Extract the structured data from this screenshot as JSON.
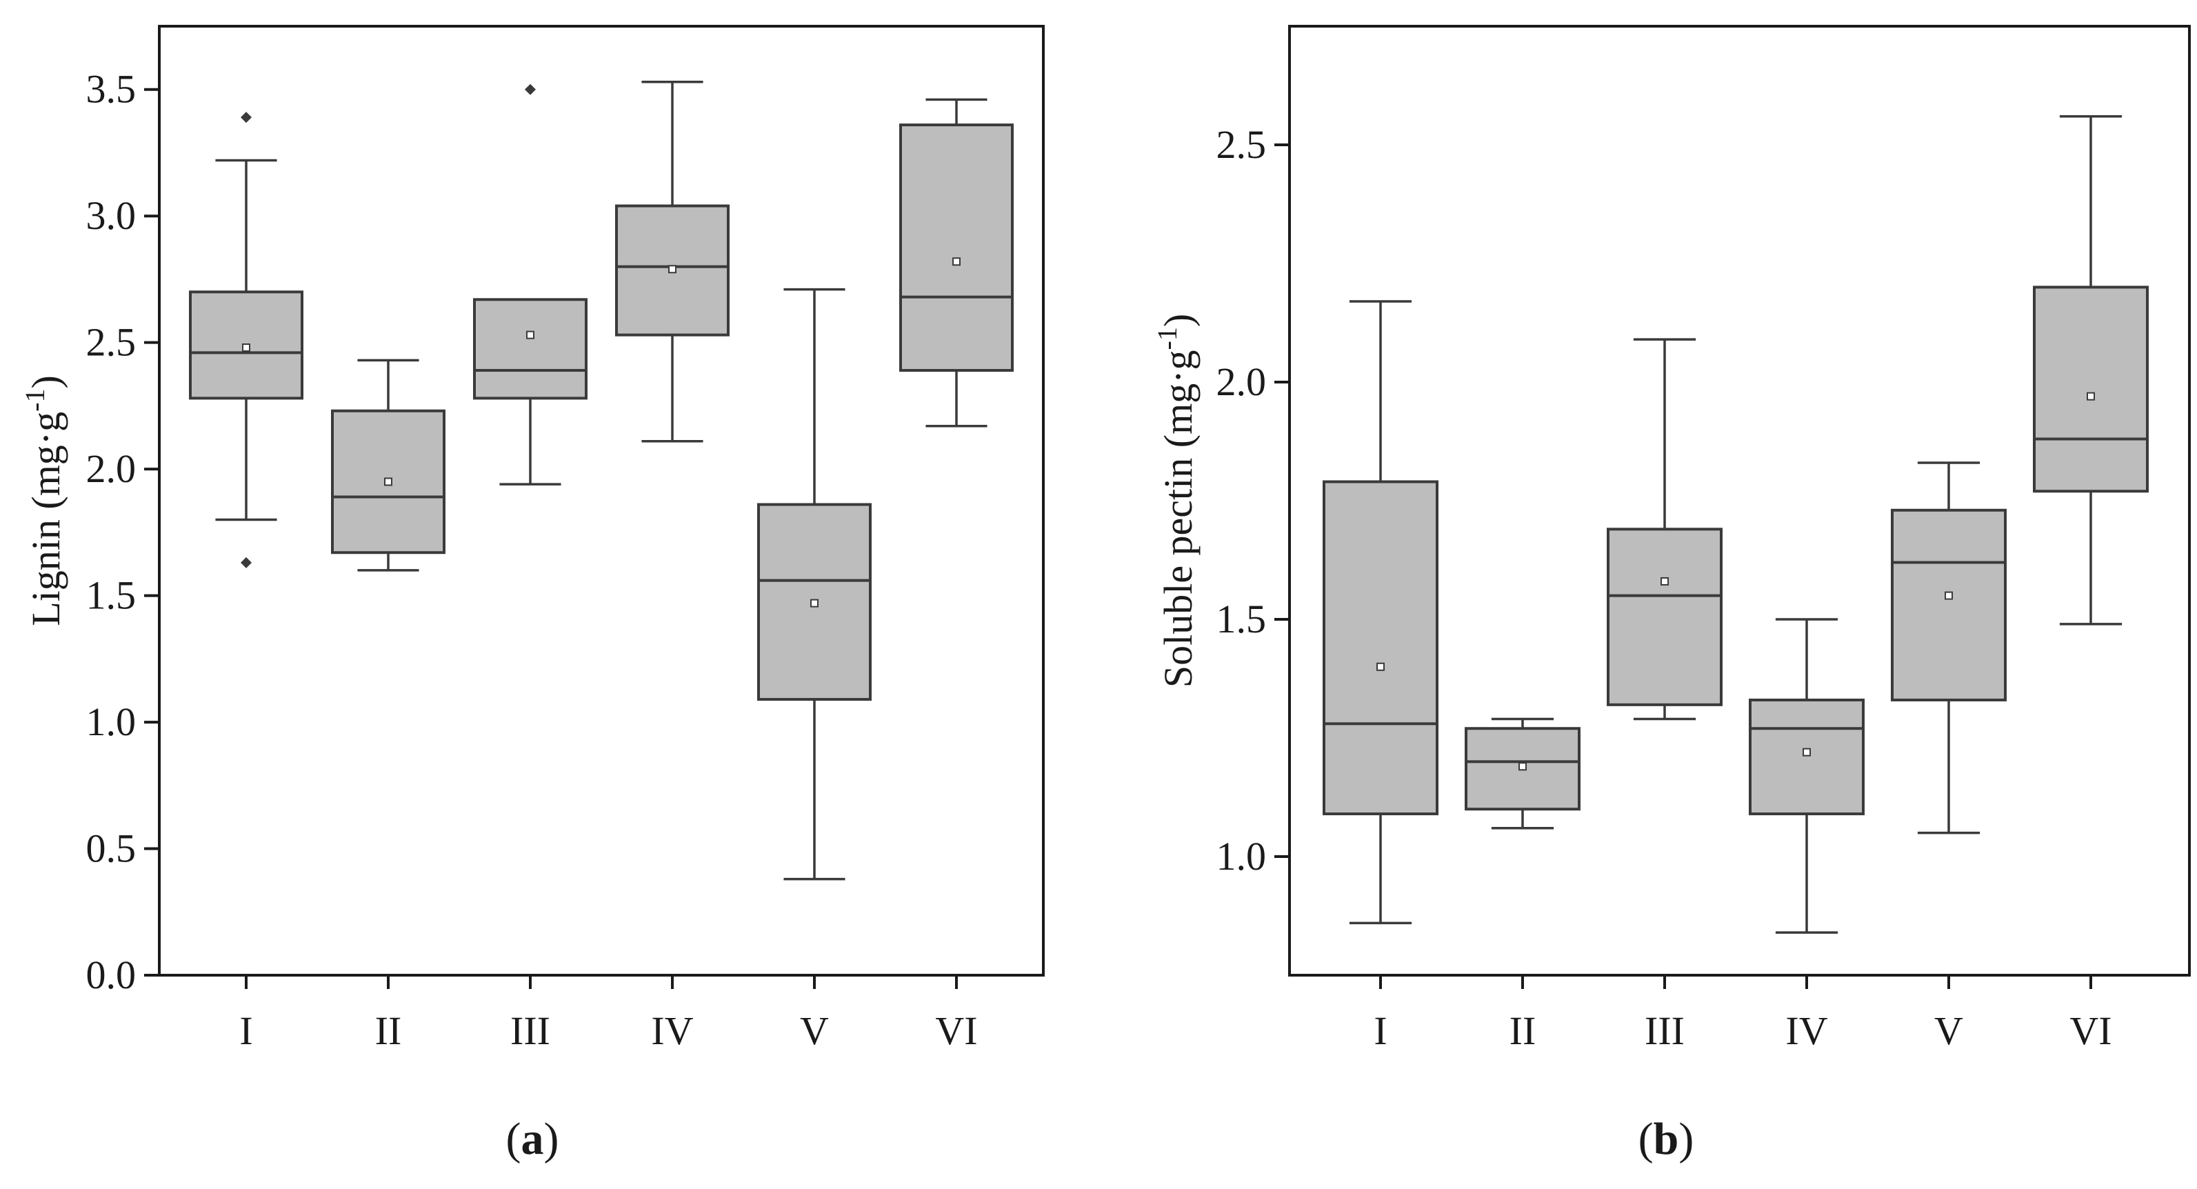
{
  "chart_data": [
    {
      "type": "box",
      "panel_label": "a",
      "ylabel": "Lignin (mg·g⁻¹)",
      "ylabel_parts": {
        "base": "Lignin (mg·g",
        "sup": "-1",
        "close": ")"
      },
      "ylim": [
        0,
        3.75
      ],
      "yticks": [
        0.0,
        0.5,
        1.0,
        1.5,
        2.0,
        2.5,
        3.0,
        3.5
      ],
      "ytick_labels": [
        "0.0",
        "0.5",
        "1.0",
        "1.5",
        "2.0",
        "2.5",
        "3.0",
        "3.5"
      ],
      "categories": [
        "I",
        "II",
        "III",
        "IV",
        "V",
        "VI"
      ],
      "boxes": [
        {
          "category": "I",
          "whisker_low": 1.8,
          "q1": 2.28,
          "median": 2.46,
          "q3": 2.7,
          "whisker_high": 3.22,
          "mean": 2.48,
          "outliers": [
            3.39,
            1.63
          ]
        },
        {
          "category": "II",
          "whisker_low": 1.6,
          "q1": 1.67,
          "median": 1.89,
          "q3": 2.23,
          "whisker_high": 2.43,
          "mean": 1.95,
          "outliers": []
        },
        {
          "category": "III",
          "whisker_low": 1.94,
          "q1": 2.28,
          "median": 2.39,
          "q3": 2.67,
          "whisker_high": 2.67,
          "mean": 2.53,
          "outliers": [
            3.5
          ]
        },
        {
          "category": "IV",
          "whisker_low": 2.11,
          "q1": 2.53,
          "median": 2.8,
          "q3": 3.04,
          "whisker_high": 3.53,
          "mean": 2.79,
          "outliers": []
        },
        {
          "category": "V",
          "whisker_low": 0.38,
          "q1": 1.09,
          "median": 1.56,
          "q3": 1.86,
          "whisker_high": 2.71,
          "mean": 1.47,
          "outliers": []
        },
        {
          "category": "VI",
          "whisker_low": 2.17,
          "q1": 2.39,
          "median": 2.68,
          "q3": 3.36,
          "whisker_high": 3.46,
          "mean": 2.82,
          "outliers": []
        }
      ]
    },
    {
      "type": "box",
      "panel_label": "b",
      "ylabel": "Soluble pectin (mg·g⁻¹)",
      "ylabel_parts": {
        "base": "Soluble pectin (mg·g",
        "sup": "-1",
        "close": ")"
      },
      "ylim": [
        0.75,
        2.75
      ],
      "yticks": [
        1.0,
        1.5,
        2.0,
        2.5
      ],
      "ytick_labels": [
        "1.0",
        "1.5",
        "2.0",
        "2.5"
      ],
      "categories": [
        "I",
        "II",
        "III",
        "IV",
        "V",
        "VI"
      ],
      "boxes": [
        {
          "category": "I",
          "whisker_low": 0.86,
          "q1": 1.09,
          "median": 1.28,
          "q3": 1.79,
          "whisker_high": 2.17,
          "mean": 1.4,
          "outliers": []
        },
        {
          "category": "II",
          "whisker_low": 1.06,
          "q1": 1.1,
          "median": 1.2,
          "q3": 1.27,
          "whisker_high": 1.29,
          "mean": 1.19,
          "outliers": []
        },
        {
          "category": "III",
          "whisker_low": 1.29,
          "q1": 1.32,
          "median": 1.55,
          "q3": 1.69,
          "whisker_high": 2.09,
          "mean": 1.58,
          "outliers": []
        },
        {
          "category": "IV",
          "whisker_low": 0.84,
          "q1": 1.09,
          "median": 1.27,
          "q3": 1.33,
          "whisker_high": 1.5,
          "mean": 1.22,
          "outliers": []
        },
        {
          "category": "V",
          "whisker_low": 1.05,
          "q1": 1.33,
          "median": 1.62,
          "q3": 1.73,
          "whisker_high": 1.83,
          "mean": 1.55,
          "outliers": []
        },
        {
          "category": "VI",
          "whisker_low": 1.49,
          "q1": 1.77,
          "median": 1.88,
          "q3": 2.2,
          "whisker_high": 2.56,
          "mean": 1.97,
          "outliers": []
        }
      ]
    }
  ],
  "colors": {
    "box_fill": "#bdbdbd",
    "stroke": "#3a3a3a",
    "axis": "#1a1a1a"
  }
}
